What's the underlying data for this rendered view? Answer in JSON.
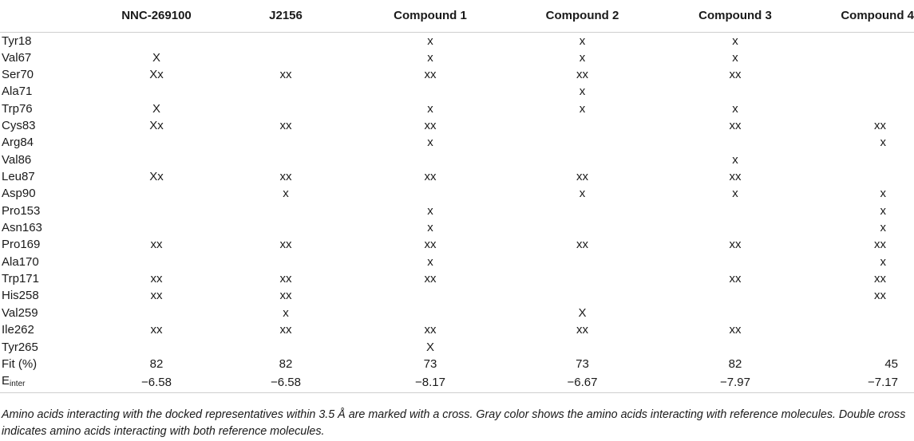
{
  "headers": [
    "",
    "NNC-269100",
    "J2156",
    "Compound 1",
    "Compound 2",
    "Compound 3",
    "Compound 4"
  ],
  "rows": [
    {
      "label": "Tyr18",
      "cells": [
        "",
        "",
        "x",
        "x",
        "x",
        ""
      ]
    },
    {
      "label": "Val67",
      "cells": [
        "X",
        "",
        "x",
        "x",
        "x",
        ""
      ]
    },
    {
      "label": "Ser70",
      "cells": [
        "Xx",
        "xx",
        "xx",
        "xx",
        "xx",
        ""
      ]
    },
    {
      "label": "Ala71",
      "cells": [
        "",
        "",
        "",
        "x",
        "",
        ""
      ]
    },
    {
      "label": "Trp76",
      "cells": [
        "X",
        "",
        "x",
        "x",
        "x",
        ""
      ]
    },
    {
      "label": "Cys83",
      "cells": [
        "Xx",
        "xx",
        "xx",
        "",
        "xx",
        "xx"
      ]
    },
    {
      "label": "Arg84",
      "cells": [
        "",
        "",
        "x",
        "",
        "",
        "x"
      ]
    },
    {
      "label": "Val86",
      "cells": [
        "",
        "",
        "",
        "",
        "x",
        ""
      ]
    },
    {
      "label": "Leu87",
      "cells": [
        "Xx",
        "xx",
        "xx",
        "xx",
        "xx",
        ""
      ]
    },
    {
      "label": "Asp90",
      "cells": [
        "",
        "x",
        "",
        "x",
        "x",
        "x"
      ]
    },
    {
      "label": "Pro153",
      "cells": [
        "",
        "",
        "x",
        "",
        "",
        "x"
      ]
    },
    {
      "label": "Asn163",
      "cells": [
        "",
        "",
        "x",
        "",
        "",
        "x"
      ]
    },
    {
      "label": "Pro169",
      "cells": [
        "xx",
        "xx",
        "xx",
        "xx",
        "xx",
        "xx"
      ]
    },
    {
      "label": "Ala170",
      "cells": [
        "",
        "",
        "x",
        "",
        "",
        "x"
      ]
    },
    {
      "label": "Trp171",
      "cells": [
        "xx",
        "xx",
        "xx",
        "",
        "xx",
        "xx"
      ]
    },
    {
      "label": "His258",
      "cells": [
        "xx",
        "xx",
        "",
        "",
        "",
        "xx"
      ]
    },
    {
      "label": "Val259",
      "cells": [
        "",
        "x",
        "",
        "X",
        "",
        ""
      ]
    },
    {
      "label": "Ile262",
      "cells": [
        "xx",
        "xx",
        "xx",
        "xx",
        "xx",
        ""
      ]
    },
    {
      "label": "Tyr265",
      "cells": [
        "",
        "",
        "X",
        "",
        "",
        ""
      ]
    },
    {
      "label": "Fit (%)",
      "cells": [
        "82",
        "82",
        "73",
        "73",
        "82",
        "45"
      ]
    }
  ],
  "einter": {
    "label_main": "E",
    "label_sub": "inter",
    "cells": [
      "−6.58",
      "−6.58",
      "−8.17",
      "−6.67",
      "−7.97",
      "−7.17"
    ]
  },
  "footnote": "Amino acids interacting with the docked representatives within 3.5 Å are marked with a cross. Gray color shows the amino acids interacting with reference molecules. Double cross indicates amino acids interacting with both reference molecules."
}
